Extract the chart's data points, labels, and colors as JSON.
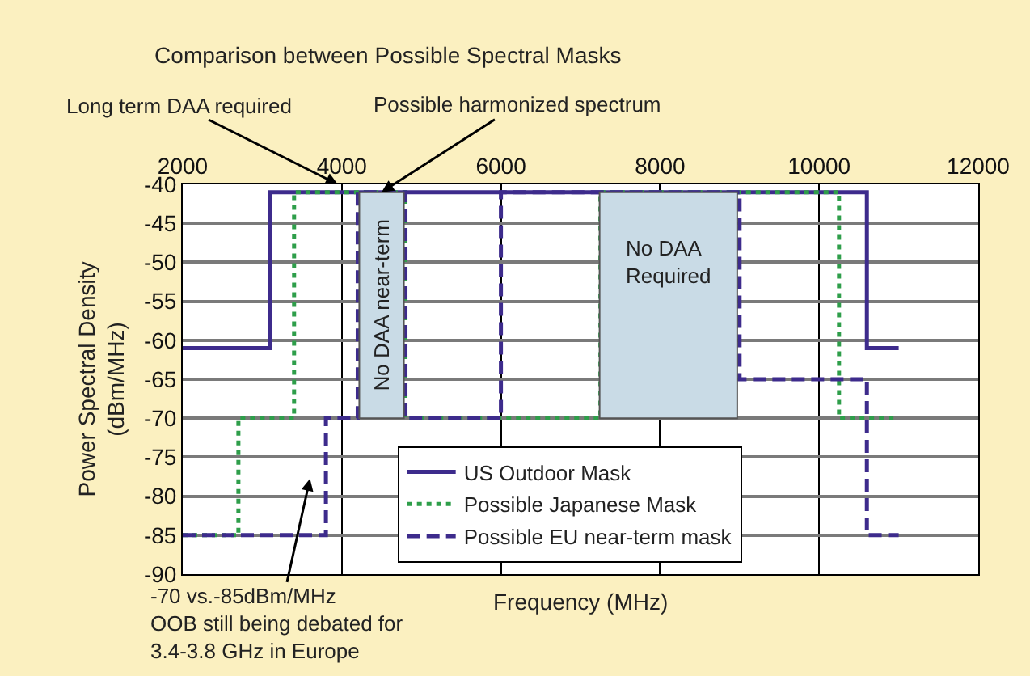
{
  "chart_data": {
    "type": "step",
    "title": "Comparison between Possible Spectral Masks",
    "xlabel": "Frequency (MHz)",
    "ylabel": "Power Spectral Density\n(dBm/MHz)",
    "series": [
      {
        "name": "US Outdoor Mask",
        "color": "#3d2b8c",
        "line_style": "solid",
        "x": [
          2000,
          3100,
          10600,
          11000
        ],
        "values": [
          -61,
          -41,
          -61,
          -61
        ]
      },
      {
        "name": "Possible Japanese Mask",
        "color": "#2e9e4a",
        "line_style": "dotted",
        "x": [
          2000,
          2700,
          3400,
          4800,
          7250,
          10250,
          10950
        ],
        "values": [
          -85,
          -70,
          -41,
          -70,
          -41,
          -70,
          -70
        ]
      },
      {
        "name": "Possible EU near-term mask",
        "color": "#3d2b8c",
        "line_style": "dashed",
        "x": [
          2000,
          3800,
          4200,
          4800,
          6000,
          9000,
          10600,
          11000
        ],
        "values": [
          -85,
          -70,
          -41,
          -70,
          -41,
          -65,
          -85,
          -85
        ]
      }
    ],
    "xlim": [
      2000,
      12000
    ],
    "xticks": [
      2000,
      4000,
      6000,
      8000,
      10000,
      12000
    ],
    "ylim": [
      -90,
      -40
    ],
    "yticks": [
      -90,
      -85,
      -80,
      -75,
      -70,
      -65,
      -60,
      -55,
      -50,
      -45,
      -40
    ],
    "grid": true,
    "legend": "bottom",
    "marker": "none",
    "annotations": [
      "Long term DAA required",
      {
        "text": "Possible harmonized spectrum",
        "x": 4500,
        "y": -41
      },
      "-70 vs.-85dBm/MHz\nOOB still being debated for\n3.4-3.8 GHz in Europe"
    ],
    "bands": [
      {
        "axis": "x",
        "from": 4220,
        "to": 4780,
        "label": "No DAA near-term",
        "color": "#c9dbe6"
      },
      {
        "axis": "x",
        "from": 7240,
        "to": 8970,
        "label": "No DAA\nRequired",
        "color": "#c9dbe6"
      }
    ]
  }
}
